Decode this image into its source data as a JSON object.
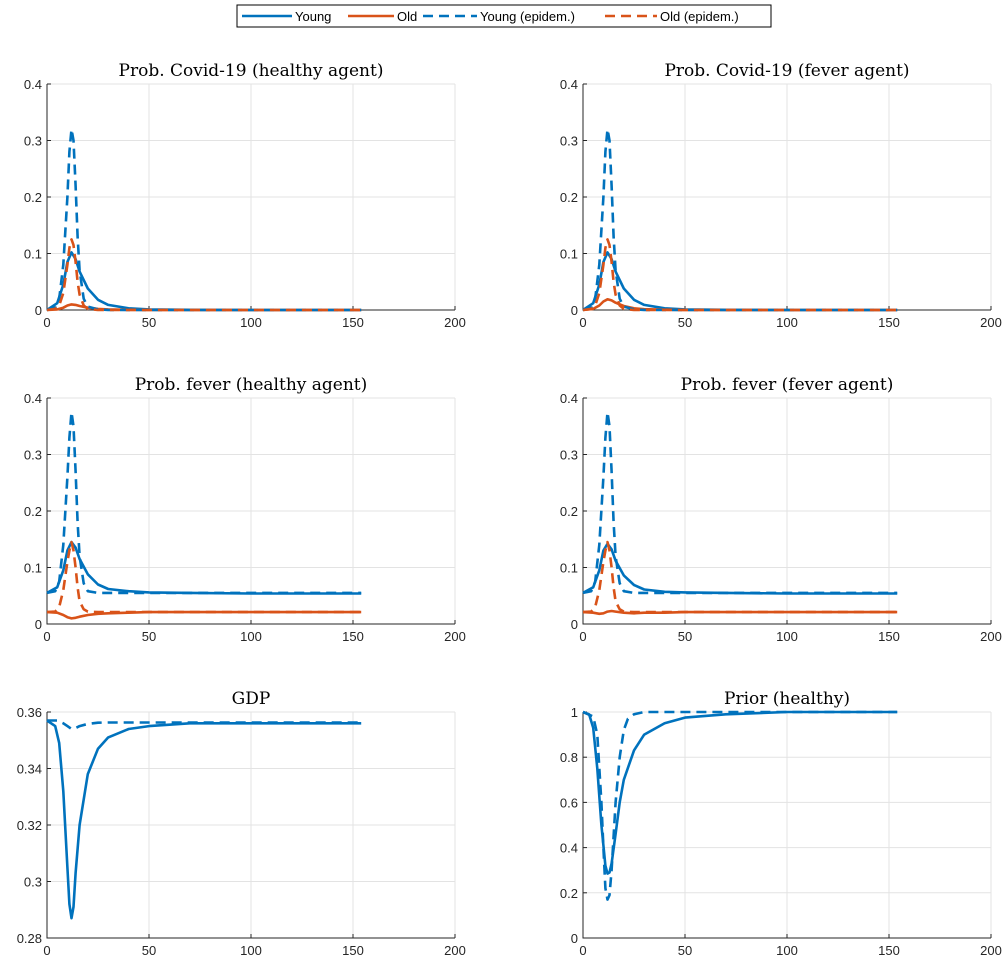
{
  "legend": {
    "placement": "top-center",
    "entries": [
      {
        "label": "Young",
        "color": "#0072BD",
        "style": "solid"
      },
      {
        "label": "Old",
        "color": "#D95319",
        "style": "solid"
      },
      {
        "label": "Young (epidem.)",
        "color": "#0072BD",
        "style": "dashed"
      },
      {
        "label": "Old (epidem.)",
        "color": "#D95319",
        "style": "dashed"
      }
    ]
  },
  "chart_data": [
    {
      "type": "line",
      "title": "Prob. Covid-19 (healthy agent)",
      "xlim": [
        0,
        200
      ],
      "ylim": [
        0,
        0.4
      ],
      "xticks": [
        "0",
        "50",
        "100",
        "150",
        "200"
      ],
      "yticks": [
        "0",
        "0.1",
        "0.2",
        "0.3",
        "0.4"
      ],
      "grid": true,
      "series": [
        {
          "name": "Young",
          "color": "#0072BD",
          "style": "solid",
          "x": [
            0,
            5,
            8,
            10,
            12,
            14,
            16,
            20,
            25,
            30,
            40,
            50,
            70,
            100,
            154
          ],
          "y": [
            0,
            0.012,
            0.045,
            0.085,
            0.102,
            0.09,
            0.068,
            0.038,
            0.018,
            0.009,
            0.003,
            0.001,
            0.0003,
            0,
            0
          ]
        },
        {
          "name": "Old",
          "color": "#D95319",
          "style": "solid",
          "x": [
            0,
            5,
            8,
            10,
            12,
            14,
            16,
            20,
            25,
            30,
            40,
            50,
            154
          ],
          "y": [
            0,
            0.001,
            0.004,
            0.008,
            0.01,
            0.009,
            0.007,
            0.004,
            0.002,
            0.001,
            0.0003,
            0,
            0
          ]
        },
        {
          "name": "Young (epidem.)",
          "color": "#0072BD",
          "style": "dashed",
          "x": [
            0,
            4,
            6,
            8,
            10,
            11,
            12,
            13,
            14,
            15,
            16,
            18,
            20,
            25,
            30,
            50,
            154
          ],
          "y": [
            0,
            0.004,
            0.02,
            0.08,
            0.2,
            0.28,
            0.32,
            0.3,
            0.22,
            0.13,
            0.07,
            0.02,
            0.006,
            0.001,
            0,
            0,
            0
          ]
        },
        {
          "name": "Old (epidem.)",
          "color": "#D95319",
          "style": "dashed",
          "x": [
            0,
            4,
            6,
            8,
            10,
            11,
            12,
            13,
            14,
            15,
            16,
            18,
            20,
            25,
            30,
            50,
            154
          ],
          "y": [
            0,
            0.002,
            0.008,
            0.03,
            0.08,
            0.11,
            0.125,
            0.115,
            0.085,
            0.05,
            0.027,
            0.008,
            0.002,
            0,
            0,
            0,
            0
          ]
        }
      ]
    },
    {
      "type": "line",
      "title": "Prob. Covid-19 (fever agent)",
      "xlim": [
        0,
        200
      ],
      "ylim": [
        0,
        0.4
      ],
      "xticks": [
        "0",
        "50",
        "100",
        "150",
        "200"
      ],
      "yticks": [
        "0",
        "0.1",
        "0.2",
        "0.3",
        "0.4"
      ],
      "grid": true,
      "series": [
        {
          "name": "Young",
          "color": "#0072BD",
          "style": "solid",
          "x": [
            0,
            5,
            8,
            10,
            12,
            14,
            16,
            20,
            25,
            30,
            40,
            50,
            70,
            100,
            154
          ],
          "y": [
            0,
            0.012,
            0.045,
            0.085,
            0.102,
            0.09,
            0.068,
            0.038,
            0.018,
            0.009,
            0.003,
            0.001,
            0.0003,
            0,
            0
          ]
        },
        {
          "name": "Old",
          "color": "#D95319",
          "style": "solid",
          "x": [
            0,
            5,
            8,
            10,
            12,
            14,
            16,
            20,
            25,
            30,
            40,
            50,
            154
          ],
          "y": [
            0,
            0.002,
            0.008,
            0.015,
            0.019,
            0.017,
            0.013,
            0.007,
            0.003,
            0.0015,
            0.0005,
            0,
            0
          ]
        },
        {
          "name": "Young (epidem.)",
          "color": "#0072BD",
          "style": "dashed",
          "x": [
            0,
            4,
            6,
            8,
            10,
            11,
            12,
            13,
            14,
            15,
            16,
            18,
            20,
            25,
            30,
            50,
            154
          ],
          "y": [
            0,
            0.004,
            0.02,
            0.08,
            0.2,
            0.28,
            0.32,
            0.3,
            0.22,
            0.13,
            0.07,
            0.02,
            0.006,
            0.001,
            0,
            0,
            0
          ]
        },
        {
          "name": "Old (epidem.)",
          "color": "#D95319",
          "style": "dashed",
          "x": [
            0,
            4,
            6,
            8,
            10,
            11,
            12,
            13,
            14,
            15,
            16,
            18,
            20,
            25,
            30,
            50,
            154
          ],
          "y": [
            0,
            0.002,
            0.008,
            0.03,
            0.08,
            0.11,
            0.125,
            0.115,
            0.085,
            0.05,
            0.027,
            0.008,
            0.002,
            0,
            0,
            0,
            0
          ]
        }
      ]
    },
    {
      "type": "line",
      "title": "Prob. fever (healthy agent)",
      "xlim": [
        0,
        200
      ],
      "ylim": [
        0,
        0.4
      ],
      "xticks": [
        "0",
        "50",
        "100",
        "150",
        "200"
      ],
      "yticks": [
        "0",
        "0.1",
        "0.2",
        "0.3",
        "0.4"
      ],
      "grid": true,
      "series": [
        {
          "name": "Young",
          "color": "#0072BD",
          "style": "solid",
          "x": [
            0,
            5,
            8,
            10,
            12,
            14,
            16,
            20,
            25,
            30,
            40,
            50,
            70,
            100,
            154
          ],
          "y": [
            0.055,
            0.065,
            0.095,
            0.13,
            0.145,
            0.135,
            0.115,
            0.088,
            0.07,
            0.062,
            0.058,
            0.056,
            0.055,
            0.054,
            0.054
          ]
        },
        {
          "name": "Old",
          "color": "#D95319",
          "style": "solid",
          "x": [
            0,
            5,
            8,
            10,
            12,
            14,
            16,
            20,
            25,
            30,
            40,
            50,
            100,
            154
          ],
          "y": [
            0.021,
            0.02,
            0.016,
            0.012,
            0.01,
            0.011,
            0.013,
            0.016,
            0.018,
            0.019,
            0.02,
            0.021,
            0.021,
            0.021
          ]
        },
        {
          "name": "Young (epidem.)",
          "color": "#0072BD",
          "style": "dashed",
          "x": [
            0,
            4,
            6,
            8,
            10,
            11,
            12,
            13,
            14,
            15,
            16,
            18,
            20,
            25,
            30,
            50,
            154
          ],
          "y": [
            0.055,
            0.058,
            0.075,
            0.14,
            0.26,
            0.33,
            0.375,
            0.35,
            0.27,
            0.18,
            0.12,
            0.072,
            0.058,
            0.055,
            0.055,
            0.055,
            0.055
          ]
        },
        {
          "name": "Old (epidem.)",
          "color": "#D95319",
          "style": "dashed",
          "x": [
            0,
            4,
            6,
            8,
            10,
            11,
            12,
            13,
            14,
            15,
            16,
            18,
            20,
            25,
            30,
            50,
            154
          ],
          "y": [
            0.021,
            0.022,
            0.03,
            0.06,
            0.11,
            0.13,
            0.145,
            0.13,
            0.1,
            0.065,
            0.04,
            0.026,
            0.022,
            0.021,
            0.021,
            0.021,
            0.021
          ]
        }
      ]
    },
    {
      "type": "line",
      "title": "Prob. fever (fever agent)",
      "xlim": [
        0,
        200
      ],
      "ylim": [
        0,
        0.4
      ],
      "xticks": [
        "0",
        "50",
        "100",
        "150",
        "200"
      ],
      "yticks": [
        "0",
        "0.1",
        "0.2",
        "0.3",
        "0.4"
      ],
      "grid": true,
      "series": [
        {
          "name": "Young",
          "color": "#0072BD",
          "style": "solid",
          "x": [
            0,
            5,
            8,
            10,
            12,
            14,
            16,
            20,
            25,
            30,
            40,
            50,
            70,
            100,
            154
          ],
          "y": [
            0.055,
            0.065,
            0.095,
            0.13,
            0.142,
            0.132,
            0.112,
            0.086,
            0.069,
            0.061,
            0.057,
            0.056,
            0.055,
            0.054,
            0.054
          ]
        },
        {
          "name": "Old",
          "color": "#D95319",
          "style": "solid",
          "x": [
            0,
            5,
            8,
            10,
            12,
            14,
            16,
            20,
            25,
            30,
            40,
            50,
            100,
            154
          ],
          "y": [
            0.021,
            0.02,
            0.018,
            0.019,
            0.022,
            0.023,
            0.022,
            0.02,
            0.019,
            0.02,
            0.02,
            0.021,
            0.021,
            0.021
          ]
        },
        {
          "name": "Young (epidem.)",
          "color": "#0072BD",
          "style": "dashed",
          "x": [
            0,
            4,
            6,
            8,
            10,
            11,
            12,
            13,
            14,
            15,
            16,
            18,
            20,
            25,
            30,
            50,
            154
          ],
          "y": [
            0.055,
            0.058,
            0.075,
            0.14,
            0.26,
            0.33,
            0.375,
            0.35,
            0.27,
            0.18,
            0.12,
            0.072,
            0.058,
            0.055,
            0.055,
            0.055,
            0.055
          ]
        },
        {
          "name": "Old (epidem.)",
          "color": "#D95319",
          "style": "dashed",
          "x": [
            0,
            4,
            6,
            8,
            10,
            11,
            12,
            13,
            14,
            15,
            16,
            18,
            20,
            25,
            30,
            50,
            154
          ],
          "y": [
            0.021,
            0.022,
            0.03,
            0.06,
            0.11,
            0.13,
            0.145,
            0.13,
            0.1,
            0.065,
            0.04,
            0.026,
            0.022,
            0.021,
            0.021,
            0.021,
            0.021
          ]
        }
      ]
    },
    {
      "type": "line",
      "title": "GDP",
      "xlim": [
        0,
        200
      ],
      "ylim": [
        0.28,
        0.36
      ],
      "xticks": [
        "0",
        "50",
        "100",
        "150",
        "200"
      ],
      "yticks": [
        "0.28",
        "0.3",
        "0.32",
        "0.34",
        "0.36"
      ],
      "grid": true,
      "series": [
        {
          "name": "Young",
          "color": "#0072BD",
          "style": "solid",
          "x": [
            0,
            4,
            6,
            8,
            10,
            11,
            12,
            13,
            14,
            16,
            20,
            25,
            30,
            40,
            50,
            70,
            100,
            154
          ],
          "y": [
            0.357,
            0.355,
            0.349,
            0.332,
            0.305,
            0.292,
            0.287,
            0.291,
            0.303,
            0.32,
            0.338,
            0.347,
            0.351,
            0.354,
            0.355,
            0.356,
            0.356,
            0.356
          ]
        },
        {
          "name": "Young (epidem.)",
          "color": "#0072BD",
          "style": "dashed",
          "x": [
            0,
            5,
            8,
            10,
            12,
            14,
            16,
            20,
            25,
            30,
            50,
            100,
            154
          ],
          "y": [
            0.357,
            0.357,
            0.356,
            0.355,
            0.354,
            0.3543,
            0.355,
            0.3558,
            0.3562,
            0.3563,
            0.3563,
            0.3563,
            0.3563
          ]
        }
      ]
    },
    {
      "type": "line",
      "title": "Prior (healthy)",
      "xlim": [
        0,
        200
      ],
      "ylim": [
        0,
        1
      ],
      "xticks": [
        "0",
        "50",
        "100",
        "150",
        "200"
      ],
      "yticks": [
        "0",
        "0.2",
        "0.4",
        "0.6",
        "0.8",
        "1"
      ],
      "grid": true,
      "series": [
        {
          "name": "Young",
          "color": "#0072BD",
          "style": "solid",
          "x": [
            0,
            3,
            5,
            7,
            9,
            11,
            12,
            13,
            14,
            16,
            18,
            20,
            25,
            30,
            40,
            50,
            70,
            100,
            154
          ],
          "y": [
            1,
            0.99,
            0.93,
            0.75,
            0.5,
            0.32,
            0.285,
            0.29,
            0.33,
            0.46,
            0.6,
            0.7,
            0.83,
            0.9,
            0.95,
            0.975,
            0.99,
            1,
            1
          ]
        },
        {
          "name": "Young (epidem.)",
          "color": "#0072BD",
          "style": "dashed",
          "x": [
            0,
            5,
            7,
            9,
            10,
            11,
            12,
            13,
            14,
            15,
            16,
            18,
            20,
            22,
            25,
            30,
            50,
            154
          ],
          "y": [
            1,
            0.98,
            0.9,
            0.6,
            0.4,
            0.22,
            0.17,
            0.19,
            0.3,
            0.45,
            0.6,
            0.8,
            0.92,
            0.97,
            0.99,
            1,
            1,
            1
          ]
        }
      ]
    }
  ]
}
